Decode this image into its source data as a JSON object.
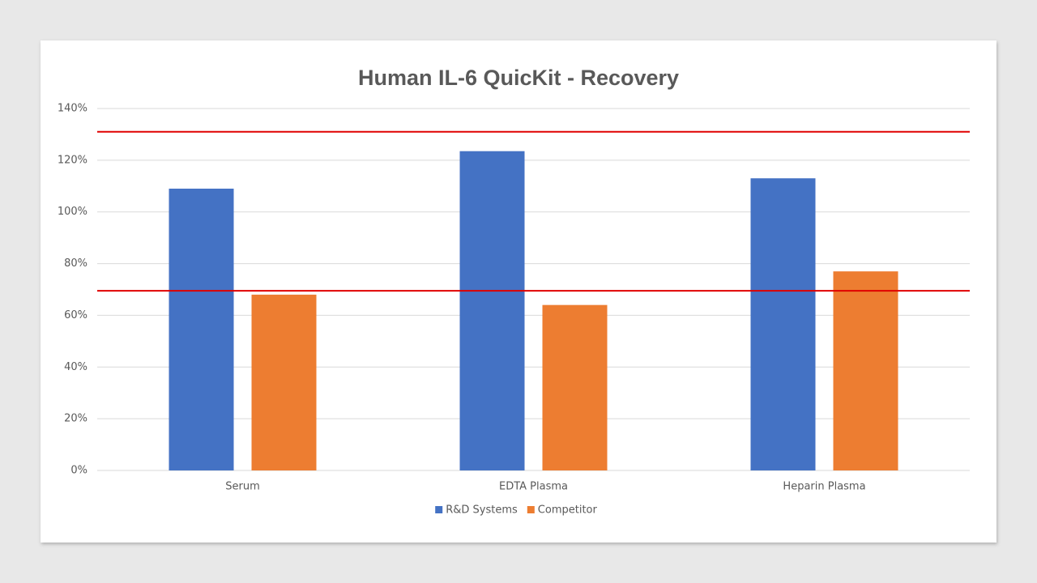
{
  "chart_data": {
    "type": "bar",
    "title": "Human IL-6 QuicKit - Recovery",
    "categories": [
      "Serum",
      "EDTA Plasma",
      "Heparin Plasma"
    ],
    "series": [
      {
        "name": "R&D Systems",
        "color": "#4472c4",
        "values": [
          109,
          123.5,
          113
        ]
      },
      {
        "name": "Competitor",
        "color": "#ed7d31",
        "values": [
          68,
          64,
          77
        ]
      }
    ],
    "ylim": [
      0,
      140
    ],
    "yticks": [
      {
        "value": 0,
        "label": "0%"
      },
      {
        "value": 20,
        "label": "20%"
      },
      {
        "value": 40,
        "label": "40%"
      },
      {
        "value": 60,
        "label": "60%"
      },
      {
        "value": 80,
        "label": "80%"
      },
      {
        "value": 100,
        "label": "100%"
      },
      {
        "value": 120,
        "label": "120%"
      },
      {
        "value": 140,
        "label": "140%"
      }
    ],
    "grid": true,
    "reference_lines": {
      "values": [
        131,
        69.5
      ],
      "color": "#e00000"
    },
    "legend": "bottom"
  }
}
